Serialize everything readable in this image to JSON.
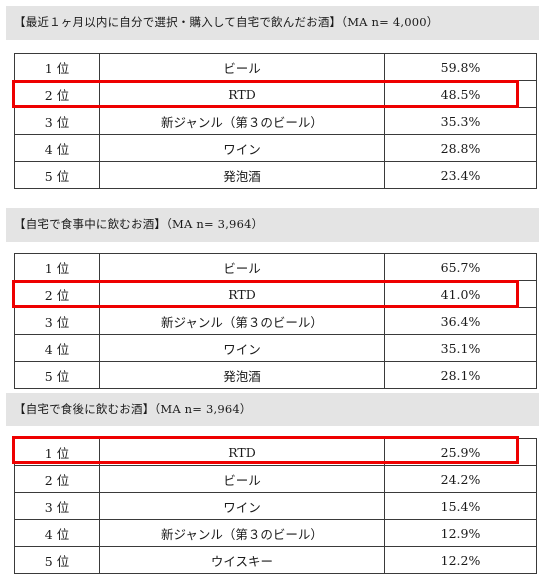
{
  "colors": {
    "highlight": "#ee0000",
    "header_bg": "#e4e4e4",
    "border": "#3a3a3a"
  },
  "sections": [
    {
      "title": "【最近１ヶ月以内に自分で選択・購入して自宅で飲んだお酒】（MA n= 4,000）",
      "rows": [
        {
          "rank": "1 位",
          "name": "ビール",
          "pct": "59.8%"
        },
        {
          "rank": "2 位",
          "name": "RTD",
          "pct": "48.5%"
        },
        {
          "rank": "3 位",
          "name": "新ジャンル（第３のビール）",
          "pct": "35.3%"
        },
        {
          "rank": "4 位",
          "name": "ワイン",
          "pct": "28.8%"
        },
        {
          "rank": "5 位",
          "name": "発泡酒",
          "pct": "23.4%"
        }
      ]
    },
    {
      "title": "【自宅で食事中に飲むお酒】（MA n= 3,964）",
      "rows": [
        {
          "rank": "1 位",
          "name": "ビール",
          "pct": "65.7%"
        },
        {
          "rank": "2 位",
          "name": "RTD",
          "pct": "41.0%"
        },
        {
          "rank": "3 位",
          "name": "新ジャンル（第３のビール）",
          "pct": "36.4%"
        },
        {
          "rank": "4 位",
          "name": "ワイン",
          "pct": "35.1%"
        },
        {
          "rank": "5 位",
          "name": "発泡酒",
          "pct": "28.1%"
        }
      ]
    },
    {
      "title": "【自宅で食後に飲むお酒】（MA n= 3,964）",
      "rows": [
        {
          "rank": "1 位",
          "name": "RTD",
          "pct": "25.9%"
        },
        {
          "rank": "2 位",
          "name": "ビール",
          "pct": "24.2%"
        },
        {
          "rank": "3 位",
          "name": "ワイン",
          "pct": "15.4%"
        },
        {
          "rank": "4 位",
          "name": "新ジャンル（第３のビール）",
          "pct": "12.9%"
        },
        {
          "rank": "5 位",
          "name": "ウイスキー",
          "pct": "12.2%"
        }
      ]
    }
  ]
}
